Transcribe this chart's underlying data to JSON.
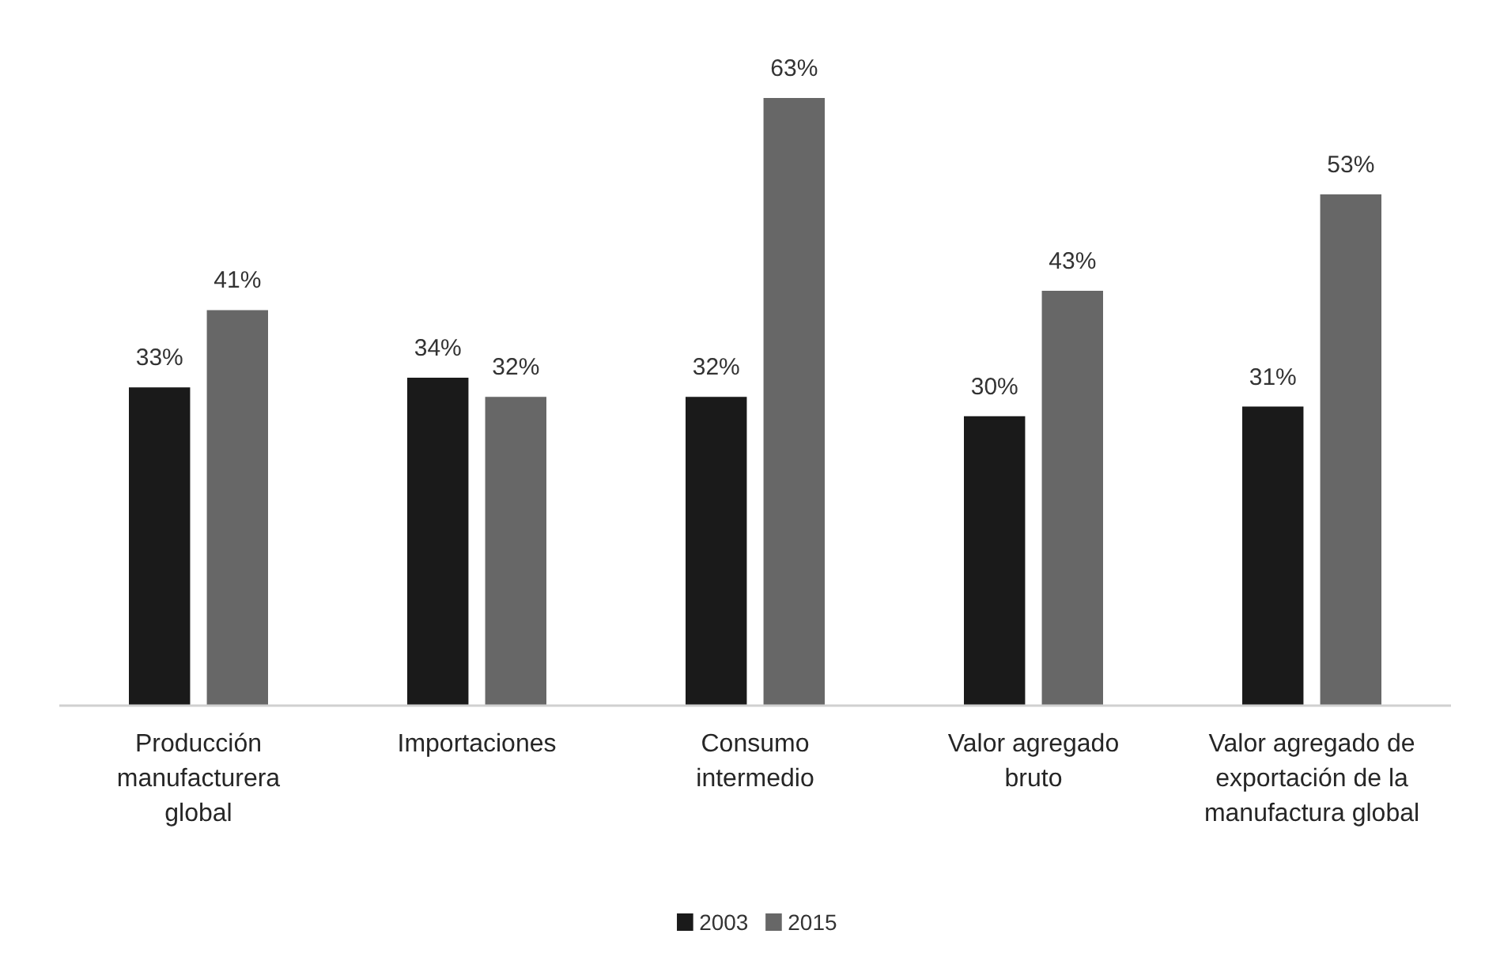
{
  "chart_data": {
    "type": "bar",
    "categories": [
      "Producción manufacturera global",
      "Importaciones",
      "Consumo intermedio",
      "Valor agregado bruto",
      "Valor agregado de exportación de la manufactura global"
    ],
    "series": [
      {
        "name": "2003",
        "color": "#1a1a1a",
        "values": [
          33,
          34,
          32,
          30,
          31
        ],
        "value_labels": [
          "33%",
          "34%",
          "32%",
          "30%",
          "31%"
        ]
      },
      {
        "name": "2015",
        "color": "#676767",
        "values": [
          41,
          32,
          63,
          43,
          53
        ],
        "value_labels": [
          "41%",
          "32%",
          "63%",
          "43%",
          "53%"
        ]
      }
    ],
    "tick_labels": "x",
    "legend": "bottom"
  }
}
